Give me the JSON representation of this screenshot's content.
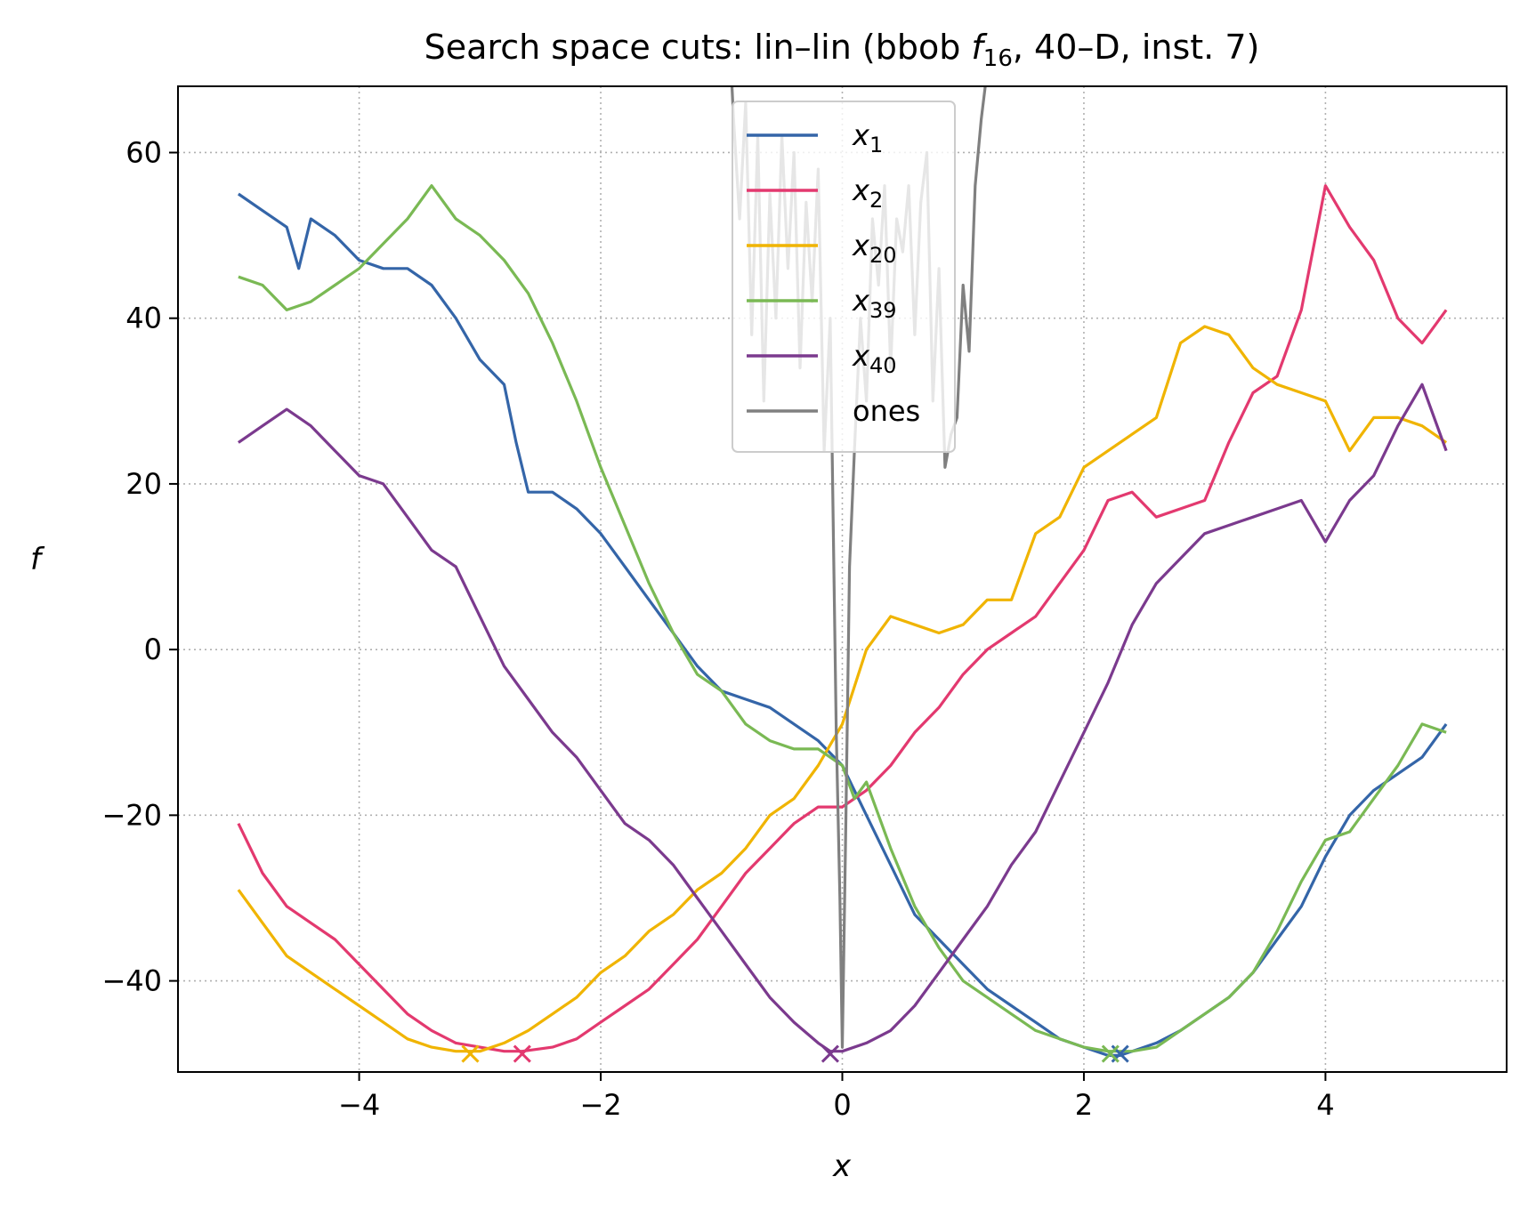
{
  "chart_data": {
    "type": "line",
    "title_prefix": "Search space cuts: lin–lin (bbob ",
    "title_func": "f",
    "title_sub": "16",
    "title_suffix": ", 40–D, inst. 7)",
    "xlabel": "x",
    "ylabel": "f",
    "xlim": [
      -5.5,
      5.5
    ],
    "ylim": [
      -51,
      68
    ],
    "xticks": [
      -4,
      -2,
      0,
      2,
      4
    ],
    "xtick_labels": [
      "−4",
      "−2",
      "0",
      "2",
      "4"
    ],
    "yticks": [
      -40,
      -20,
      0,
      20,
      40,
      60
    ],
    "ytick_labels": [
      "−40",
      "−20",
      "0",
      "20",
      "40",
      "60"
    ],
    "grid": true,
    "legend_position": "top-center",
    "series": [
      {
        "name": "x",
        "sub": "1",
        "color": "#3465a8",
        "x": [
          -5,
          -4.8,
          -4.6,
          -4.5,
          -4.4,
          -4.2,
          -4.0,
          -3.8,
          -3.6,
          -3.4,
          -3.2,
          -3.0,
          -2.8,
          -2.7,
          -2.6,
          -2.4,
          -2.2,
          -2.0,
          -1.8,
          -1.6,
          -1.4,
          -1.2,
          -1.0,
          -0.8,
          -0.6,
          -0.4,
          -0.2,
          0.0,
          0.2,
          0.4,
          0.6,
          0.8,
          1.0,
          1.2,
          1.4,
          1.6,
          1.8,
          2.0,
          2.2,
          2.3,
          2.4,
          2.6,
          2.8,
          3.0,
          3.2,
          3.4,
          3.6,
          3.8,
          4.0,
          4.2,
          4.4,
          4.6,
          4.8,
          5.0
        ],
        "y": [
          55,
          53,
          51,
          46,
          52,
          50,
          47,
          46,
          46,
          44,
          40,
          35,
          32,
          25,
          19,
          19,
          17,
          14,
          10,
          6,
          2,
          -2,
          -5,
          -6,
          -7,
          -9,
          -11,
          -14,
          -20,
          -26,
          -32,
          -35,
          -38,
          -41,
          -43,
          -45,
          -47,
          -48,
          -49,
          -49,
          -48.5,
          -47.5,
          -46,
          -44,
          -42,
          -39,
          -35,
          -31,
          -25,
          -20,
          -17,
          -15,
          -13,
          -9
        ]
      },
      {
        "name": "x",
        "sub": "2",
        "color": "#e3396f",
        "x": [
          -5,
          -4.8,
          -4.6,
          -4.4,
          -4.2,
          -4.0,
          -3.8,
          -3.6,
          -3.4,
          -3.2,
          -3.0,
          -2.8,
          -2.65,
          -2.4,
          -2.2,
          -2.0,
          -1.8,
          -1.6,
          -1.4,
          -1.2,
          -1.0,
          -0.8,
          -0.6,
          -0.4,
          -0.2,
          0.0,
          0.2,
          0.4,
          0.6,
          0.8,
          1.0,
          1.2,
          1.4,
          1.6,
          1.8,
          2.0,
          2.2,
          2.4,
          2.6,
          2.8,
          3.0,
          3.2,
          3.4,
          3.6,
          3.8,
          4.0,
          4.2,
          4.4,
          4.6,
          4.8,
          5.0
        ],
        "y": [
          -21,
          -27,
          -31,
          -33,
          -35,
          -38,
          -41,
          -44,
          -46,
          -47.5,
          -48,
          -48.5,
          -48.5,
          -48,
          -47,
          -45,
          -43,
          -41,
          -38,
          -35,
          -31,
          -27,
          -24,
          -21,
          -19,
          -19,
          -17,
          -14,
          -10,
          -7,
          -3,
          0,
          2,
          4,
          8,
          12,
          18,
          19,
          16,
          17,
          18,
          25,
          31,
          33,
          41,
          56,
          51,
          47,
          40,
          37,
          41
        ]
      },
      {
        "name": "x",
        "sub": "20",
        "color": "#f0b400",
        "x": [
          -5,
          -4.8,
          -4.6,
          -4.4,
          -4.2,
          -4.0,
          -3.8,
          -3.6,
          -3.4,
          -3.2,
          -3.1,
          -3.0,
          -2.8,
          -2.6,
          -2.4,
          -2.2,
          -2.0,
          -1.8,
          -1.6,
          -1.4,
          -1.2,
          -1.0,
          -0.8,
          -0.6,
          -0.4,
          -0.2,
          0.0,
          0.2,
          0.4,
          0.6,
          0.8,
          1.0,
          1.2,
          1.4,
          1.6,
          1.8,
          2.0,
          2.2,
          2.4,
          2.6,
          2.8,
          3.0,
          3.2,
          3.4,
          3.6,
          3.8,
          4.0,
          4.2,
          4.4,
          4.6,
          4.8,
          5.0
        ],
        "y": [
          -29,
          -33,
          -37,
          -39,
          -41,
          -43,
          -45,
          -47,
          -48,
          -48.5,
          -48.5,
          -48.5,
          -47.5,
          -46,
          -44,
          -42,
          -39,
          -37,
          -34,
          -32,
          -29,
          -27,
          -24,
          -20,
          -18,
          -14,
          -9,
          0,
          4,
          3,
          2,
          3,
          6,
          6,
          14,
          16,
          22,
          24,
          26,
          28,
          37,
          39,
          38,
          34,
          32,
          31,
          30,
          24,
          28,
          28,
          27,
          25
        ]
      },
      {
        "name": "x",
        "sub": "39",
        "color": "#7ab954",
        "x": [
          -5,
          -4.8,
          -4.6,
          -4.4,
          -4.2,
          -4.0,
          -3.8,
          -3.6,
          -3.4,
          -3.2,
          -3.0,
          -2.8,
          -2.6,
          -2.4,
          -2.2,
          -2.0,
          -1.8,
          -1.6,
          -1.4,
          -1.2,
          -1.0,
          -0.8,
          -0.6,
          -0.4,
          -0.2,
          0.0,
          0.1,
          0.2,
          0.4,
          0.6,
          0.8,
          1.0,
          1.2,
          1.4,
          1.6,
          1.8,
          2.0,
          2.2,
          2.4,
          2.6,
          2.8,
          3.0,
          3.2,
          3.4,
          3.6,
          3.8,
          4.0,
          4.2,
          4.4,
          4.6,
          4.8,
          5.0
        ],
        "y": [
          45,
          44,
          41,
          42,
          44,
          46,
          49,
          52,
          56,
          52,
          50,
          47,
          43,
          37,
          30,
          22,
          15,
          8,
          2,
          -3,
          -5,
          -9,
          -11,
          -12,
          -12,
          -14,
          -18,
          -16,
          -24,
          -31,
          -36,
          -40,
          -42,
          -44,
          -46,
          -47,
          -48,
          -48.5,
          -48.5,
          -48,
          -46,
          -44,
          -42,
          -39,
          -34,
          -28,
          -23,
          -22,
          -18,
          -14,
          -9,
          -10
        ]
      },
      {
        "name": "x",
        "sub": "40",
        "color": "#7b3a8e",
        "x": [
          -5,
          -4.8,
          -4.6,
          -4.4,
          -4.2,
          -4.0,
          -3.8,
          -3.6,
          -3.4,
          -3.2,
          -3.0,
          -2.8,
          -2.6,
          -2.4,
          -2.2,
          -2.0,
          -1.8,
          -1.6,
          -1.4,
          -1.2,
          -1.0,
          -0.8,
          -0.6,
          -0.4,
          -0.2,
          -0.1,
          0.0,
          0.2,
          0.4,
          0.6,
          0.8,
          1.0,
          1.2,
          1.4,
          1.6,
          1.8,
          2.0,
          2.2,
          2.4,
          2.6,
          2.8,
          3.0,
          3.2,
          3.4,
          3.6,
          3.8,
          4.0,
          4.2,
          4.4,
          4.6,
          4.8,
          5.0
        ],
        "y": [
          25,
          27,
          29,
          27,
          24,
          21,
          20,
          16,
          12,
          10,
          4,
          -2,
          -6,
          -10,
          -13,
          -17,
          -21,
          -23,
          -26,
          -30,
          -34,
          -38,
          -42,
          -45,
          -47.5,
          -48.5,
          -48.5,
          -47.5,
          -46,
          -43,
          -39,
          -35,
          -31,
          -26,
          -22,
          -16,
          -10,
          -4,
          3,
          8,
          11,
          14,
          15,
          16,
          17,
          18,
          13,
          18,
          21,
          27,
          32,
          24
        ]
      },
      {
        "name": "ones",
        "sub": "",
        "color": "#808080",
        "x": [
          -0.92,
          -0.9,
          -0.85,
          -0.8,
          -0.75,
          -0.7,
          -0.65,
          -0.6,
          -0.55,
          -0.5,
          -0.45,
          -0.4,
          -0.35,
          -0.3,
          -0.25,
          -0.2,
          -0.15,
          -0.1,
          -0.05,
          -0.02,
          0.0,
          0.03,
          0.06,
          0.1,
          0.15,
          0.2,
          0.25,
          0.3,
          0.35,
          0.4,
          0.45,
          0.5,
          0.55,
          0.6,
          0.65,
          0.7,
          0.75,
          0.8,
          0.85,
          0.9,
          0.95,
          1.0,
          1.05,
          1.1,
          1.15,
          1.2
        ],
        "y": [
          70,
          64,
          52,
          66,
          38,
          62,
          30,
          55,
          40,
          62,
          46,
          60,
          34,
          54,
          42,
          58,
          24,
          40,
          -10,
          -30,
          -48,
          -20,
          10,
          24,
          40,
          30,
          52,
          44,
          56,
          34,
          52,
          48,
          56,
          38,
          54,
          60,
          30,
          46,
          22,
          26,
          28,
          44,
          36,
          56,
          64,
          70
        ]
      }
    ],
    "minima": [
      {
        "x": 2.3,
        "y": -48.8,
        "color": "#3465a8"
      },
      {
        "x": -2.65,
        "y": -48.8,
        "color": "#e3396f"
      },
      {
        "x": -3.08,
        "y": -48.8,
        "color": "#f0b400"
      },
      {
        "x": 2.22,
        "y": -48.8,
        "color": "#7ab954"
      },
      {
        "x": -0.1,
        "y": -48.8,
        "color": "#7b3a8e"
      }
    ]
  }
}
